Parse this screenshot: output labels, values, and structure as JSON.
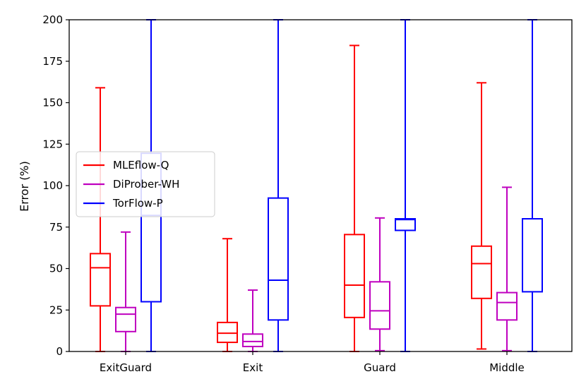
{
  "chart_data": {
    "type": "box",
    "title": "",
    "xlabel": "",
    "ylabel": "Error (%)",
    "ylim": [
      0,
      200
    ],
    "yticks": [
      0,
      25,
      50,
      75,
      100,
      125,
      150,
      175,
      200
    ],
    "ytick_labels": [
      "0",
      "25",
      "50",
      "75",
      "100",
      "125",
      "150",
      "175",
      "200"
    ],
    "categories": [
      "ExitGuard",
      "Exit",
      "Guard",
      "Middle"
    ],
    "legend_position": "center-left",
    "series": [
      {
        "name": "MLEflow-Q",
        "color": "#ff0000",
        "boxes": [
          {
            "min": 0,
            "q1": 27.5,
            "median": 50.5,
            "q3": 59,
            "max": 159
          },
          {
            "min": 0,
            "q1": 5.5,
            "median": 11,
            "q3": 17.5,
            "max": 68
          },
          {
            "min": 0,
            "q1": 20.5,
            "median": 40,
            "q3": 70.5,
            "max": 184.5
          },
          {
            "min": 1.5,
            "q1": 32,
            "median": 53,
            "q3": 63.5,
            "max": 162
          }
        ]
      },
      {
        "name": "DiProber-WH",
        "color": "#bf00bf",
        "boxes": [
          {
            "min": 0,
            "q1": 12,
            "median": 22.5,
            "q3": 26.5,
            "max": 72
          },
          {
            "min": 0,
            "q1": 3,
            "median": 6,
            "q3": 10.5,
            "max": 37
          },
          {
            "min": 0.5,
            "q1": 13.5,
            "median": 24.5,
            "q3": 42,
            "max": 80.5
          },
          {
            "min": 0.5,
            "q1": 19,
            "median": 29.5,
            "q3": 35.5,
            "max": 99
          }
        ]
      },
      {
        "name": "TorFlow-P",
        "color": "#0000ff",
        "boxes": [
          {
            "min": 0,
            "q1": 30,
            "median": 82,
            "q3": 119.5,
            "max": 200
          },
          {
            "min": 0,
            "q1": 19,
            "median": 43,
            "q3": 92.5,
            "max": 200
          },
          {
            "min": 0,
            "q1": 73,
            "median": 79.5,
            "q3": 80,
            "max": 200
          },
          {
            "min": 0,
            "q1": 36,
            "median": 80,
            "q3": 80,
            "max": 200
          }
        ]
      }
    ]
  }
}
